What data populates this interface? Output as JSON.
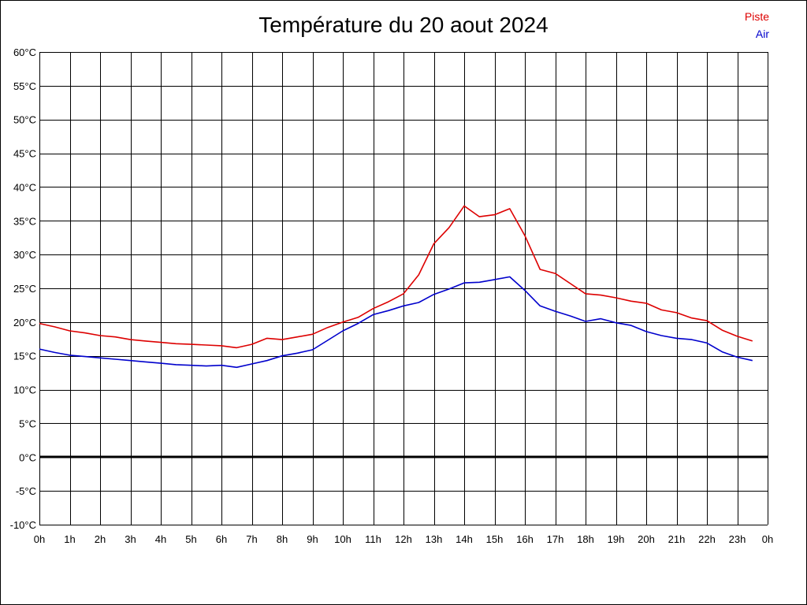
{
  "chart_data": {
    "type": "line",
    "title": "Température du 20 aout 2024",
    "legend_placement": "top-right",
    "grid": true,
    "ylim": [
      -10,
      60
    ],
    "y_ticks": [
      60,
      55,
      50,
      45,
      40,
      35,
      30,
      25,
      20,
      15,
      10,
      5,
      0,
      -5,
      -10
    ],
    "y_tick_labels": [
      "60°C",
      "55°C",
      "50°C",
      "45°C",
      "40°C",
      "35°C",
      "30°C",
      "25°C",
      "20°C",
      "15°C",
      "10°C",
      "5°C",
      "0°C",
      "-5°C",
      "-10°C"
    ],
    "xlim": [
      0,
      24
    ],
    "x_ticks": [
      0,
      1,
      2,
      3,
      4,
      5,
      6,
      7,
      8,
      9,
      10,
      11,
      12,
      13,
      14,
      15,
      16,
      17,
      18,
      19,
      20,
      21,
      22,
      23,
      24
    ],
    "x_tick_labels": [
      "0h",
      "1h",
      "2h",
      "3h",
      "4h",
      "5h",
      "6h",
      "7h",
      "8h",
      "9h",
      "10h",
      "11h",
      "12h",
      "13h",
      "14h",
      "15h",
      "16h",
      "17h",
      "18h",
      "19h",
      "20h",
      "21h",
      "22h",
      "23h",
      "0h"
    ],
    "x": [
      0,
      0.5,
      1,
      1.5,
      2,
      2.5,
      3,
      3.5,
      4,
      4.5,
      5,
      5.5,
      6,
      6.5,
      7,
      7.5,
      8,
      8.5,
      9,
      9.5,
      10,
      10.5,
      11,
      11.5,
      12,
      12.5,
      13,
      13.5,
      14,
      14.5,
      15,
      15.5,
      16,
      16.5,
      17,
      17.5,
      18,
      18.5,
      19,
      19.5,
      20,
      20.5,
      21,
      21.5,
      22,
      22.5,
      23,
      23.5
    ],
    "series": [
      {
        "name": "Piste",
        "color": "#dd0000",
        "values": [
          19.8,
          19.3,
          18.7,
          18.4,
          18.0,
          17.8,
          17.4,
          17.2,
          17.0,
          16.8,
          16.7,
          16.6,
          16.5,
          16.2,
          16.7,
          17.6,
          17.4,
          17.8,
          18.2,
          19.2,
          20.0,
          20.7,
          22.0,
          23.0,
          24.2,
          27.0,
          31.6,
          34.0,
          37.2,
          35.6,
          35.9,
          36.8,
          32.8,
          27.8,
          27.2,
          25.7,
          24.2,
          24.0,
          23.6,
          23.1,
          22.8,
          21.8,
          21.4,
          20.6,
          20.2,
          18.8,
          17.9,
          17.2
        ]
      },
      {
        "name": "Air",
        "color": "#0000cc",
        "values": [
          16.0,
          15.5,
          15.1,
          14.9,
          14.7,
          14.5,
          14.3,
          14.1,
          13.9,
          13.7,
          13.6,
          13.5,
          13.6,
          13.3,
          13.8,
          14.3,
          15.0,
          15.4,
          15.9,
          17.3,
          18.7,
          19.8,
          21.1,
          21.7,
          22.4,
          22.9,
          24.1,
          24.9,
          25.8,
          25.9,
          26.3,
          26.7,
          24.7,
          22.4,
          21.6,
          20.9,
          20.1,
          20.5,
          19.9,
          19.5,
          18.6,
          18.0,
          17.6,
          17.4,
          16.9,
          15.6,
          14.8,
          14.3
        ]
      }
    ]
  }
}
